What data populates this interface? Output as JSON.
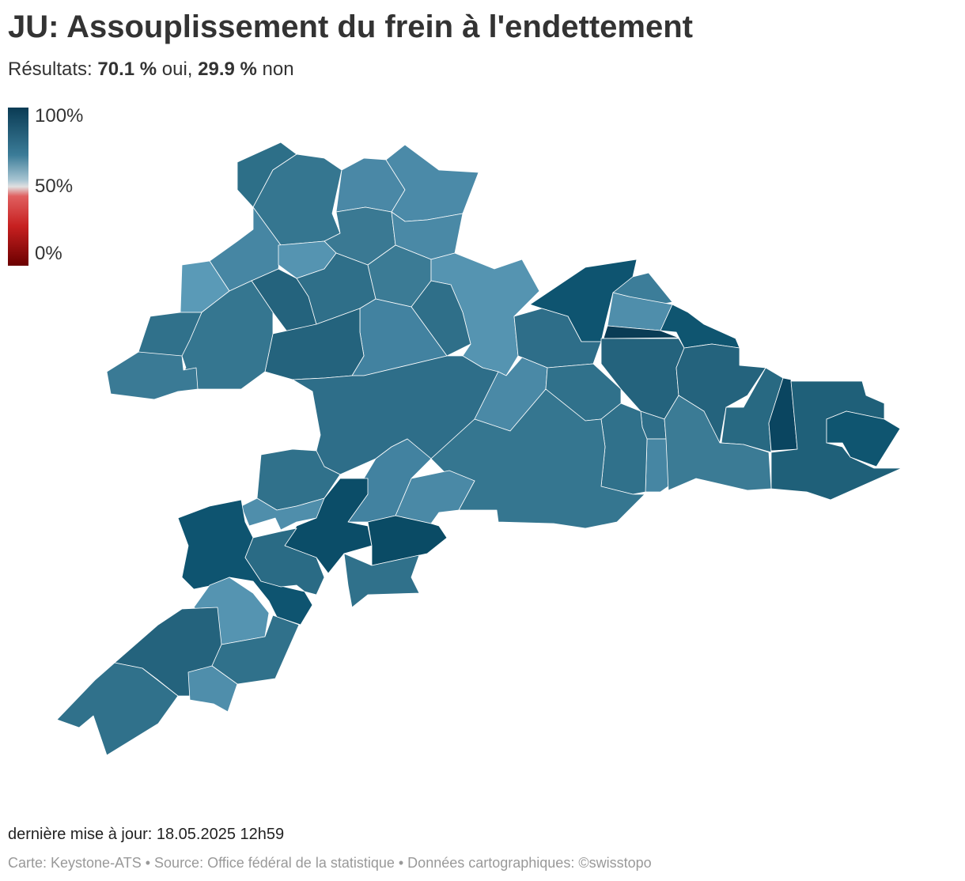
{
  "header": {
    "title": "JU: Assouplissement du frein à l'endettement",
    "subtitle": {
      "prefix": "Résultats:",
      "yes_value": "70.1 %",
      "yes_label": "oui,",
      "no_value": "29.9 %",
      "no_label": "non"
    }
  },
  "legend": {
    "labels": [
      "100%",
      "50%",
      "0%"
    ]
  },
  "footer": {
    "updated": "dernière mise à jour: 18.05.2025 12h59",
    "source": "Carte: Keystone-ATS • Source: Office fédéral de la statistique • Données cartographiques: ©swisstopo"
  }
}
